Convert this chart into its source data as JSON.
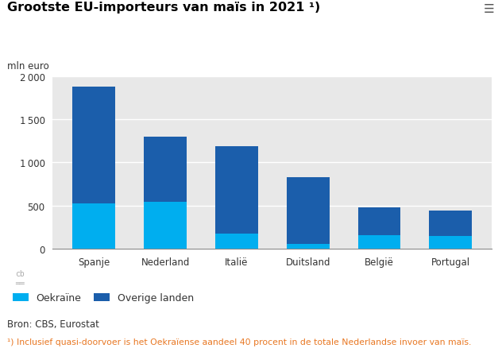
{
  "title": "Grootste EU-importeurs van maïs in 2021 ¹)",
  "ylabel": "mln euro",
  "categories": [
    "Spanje",
    "Nederland",
    "Italië",
    "Duitsland",
    "België",
    "Portugal"
  ],
  "ukraine": [
    520,
    540,
    175,
    50,
    155,
    150
  ],
  "overige": [
    1360,
    760,
    1010,
    775,
    320,
    295
  ],
  "color_ukraine": "#00AEEF",
  "color_overige": "#1B5EAB",
  "ylim": [
    0,
    2000
  ],
  "yticks": [
    0,
    500,
    1000,
    1500,
    2000
  ],
  "legend_ukraine": "Oekraïne",
  "legend_overige": "Overige landen",
  "source": "Bron: CBS, Eurostat",
  "footnote": "¹) Inclusief quasi-doorvoer is het Oekraïense aandeel 40 procent in de totale Nederlandse invoer van maïs.",
  "background_chart": "#e8e8e8",
  "background_fig": "#ffffff",
  "footnote_color": "#E87722"
}
